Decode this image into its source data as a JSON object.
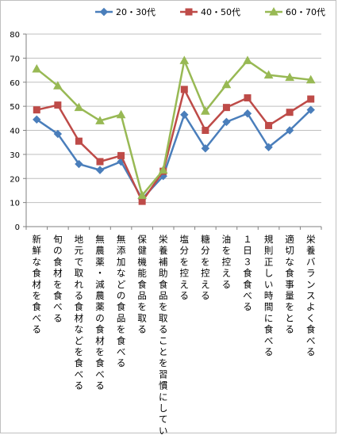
{
  "chart_data": {
    "type": "line",
    "title": "",
    "xlabel": "",
    "ylabel": "",
    "ylim": [
      0,
      80
    ],
    "yticks": [
      0,
      10,
      20,
      30,
      40,
      50,
      60,
      70,
      80
    ],
    "grid": true,
    "legend_position": "top",
    "categories": [
      "新鮮な食材を食べる",
      "旬の食材を食べる",
      "地元で取れる食材などを食べる",
      "無農薬・減農薬の食材を食べる",
      "無添加などの食品を食べる",
      "保健機能食品を取る",
      "栄養補助食品を取ることを習慣にしている",
      "塩分を控える",
      "糖分を控える",
      "油を控える",
      "１日３食食べる",
      "規則正しい時間に食べる",
      "適切な食事量をとる",
      "栄養バランスよく食べる"
    ],
    "series": [
      {
        "name": "20・30代",
        "color": "#4a7ebb",
        "marker": "diamond",
        "values": [
          44.5,
          38.5,
          26,
          23.5,
          27,
          11.5,
          21,
          46.5,
          32.5,
          43.5,
          47,
          33,
          40,
          48.5
        ]
      },
      {
        "name": "40・50代",
        "color": "#be4b48",
        "marker": "square",
        "values": [
          48.5,
          50.5,
          35.5,
          27,
          29.5,
          10.5,
          23,
          57,
          40,
          49.5,
          53.5,
          42,
          47.5,
          53
        ]
      },
      {
        "name": "60・70代",
        "color": "#98b954",
        "marker": "triangle",
        "values": [
          65.5,
          58.5,
          49.5,
          44,
          46.5,
          13,
          23.5,
          69,
          48,
          59,
          69,
          63,
          62,
          61
        ]
      }
    ]
  }
}
